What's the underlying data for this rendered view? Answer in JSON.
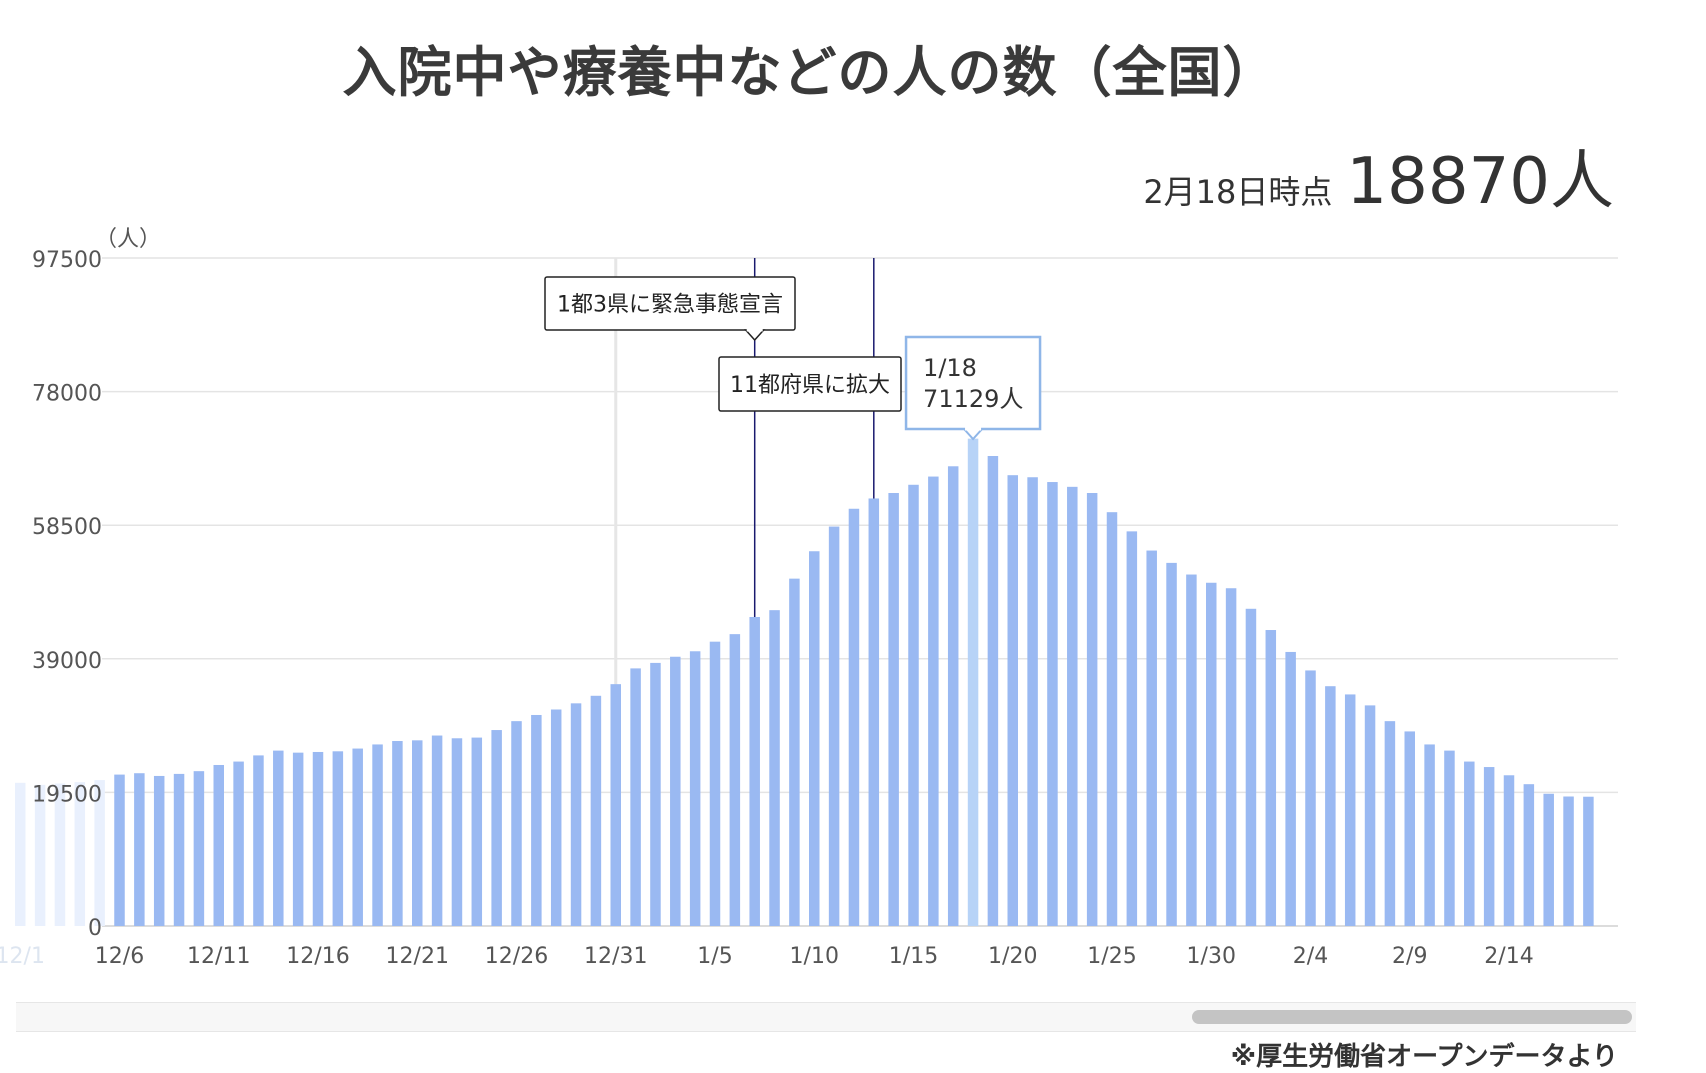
{
  "title": "入院中や療養中などの人の数（全国）",
  "latest": {
    "date_label": "2月18日時点",
    "value_label": "18870人"
  },
  "source": "※厚生労働省オープンデータより",
  "colors": {
    "bar": "#9ab9f2",
    "bar_faded": "#e9f0fd",
    "bar_highlight": "#b7d3f7",
    "grid": "#e4e4e4",
    "event_line": "#1a1a6e",
    "tooltip_border": "#8fb6e8"
  },
  "chart_data": {
    "type": "bar",
    "title": "入院中や療養中などの人の数（全国）",
    "ylabel": "（人）",
    "ylim": [
      0,
      97500
    ],
    "yticks": [
      0,
      19500,
      39000,
      58500,
      78000,
      97500
    ],
    "grid": true,
    "x_start": "12/1",
    "categories": [
      "12/1",
      "12/2",
      "12/3",
      "12/4",
      "12/5",
      "12/6",
      "12/7",
      "12/8",
      "12/9",
      "12/10",
      "12/11",
      "12/12",
      "12/13",
      "12/14",
      "12/15",
      "12/16",
      "12/17",
      "12/18",
      "12/19",
      "12/20",
      "12/21",
      "12/22",
      "12/23",
      "12/24",
      "12/25",
      "12/26",
      "12/27",
      "12/28",
      "12/29",
      "12/30",
      "12/31",
      "1/1",
      "1/2",
      "1/3",
      "1/4",
      "1/5",
      "1/6",
      "1/7",
      "1/8",
      "1/9",
      "1/10",
      "1/11",
      "1/12",
      "1/13",
      "1/14",
      "1/15",
      "1/16",
      "1/17",
      "1/18",
      "1/19",
      "1/20",
      "1/21",
      "1/22",
      "1/23",
      "1/24",
      "1/25",
      "1/26",
      "1/27",
      "1/28",
      "1/29",
      "1/30",
      "1/31",
      "2/1",
      "2/2",
      "2/3",
      "2/4",
      "2/5",
      "2/6",
      "2/7",
      "2/8",
      "2/9",
      "2/10",
      "2/11",
      "2/12",
      "2/13",
      "2/14",
      "2/15",
      "2/16",
      "2/17",
      "2/18"
    ],
    "xtick_labels": [
      "12/1",
      "12/6",
      "12/11",
      "12/16",
      "12/21",
      "12/26",
      "12/31",
      "1/5",
      "1/10",
      "1/15",
      "1/20",
      "1/25",
      "1/30",
      "2/4",
      "2/9",
      "2/14"
    ],
    "xtick_faded": [
      "12/1"
    ],
    "values": [
      20900,
      20600,
      20800,
      21000,
      21300,
      22100,
      22300,
      21900,
      22200,
      22600,
      23500,
      24000,
      24900,
      25600,
      25300,
      25400,
      25500,
      25900,
      26500,
      27000,
      27100,
      27800,
      27400,
      27500,
      28600,
      29900,
      30800,
      31600,
      32500,
      33600,
      35300,
      37600,
      38400,
      39300,
      40100,
      41500,
      42600,
      45100,
      46100,
      50700,
      54700,
      58300,
      60900,
      62400,
      63200,
      64400,
      65600,
      67100,
      71129,
      68600,
      65800,
      65500,
      64800,
      64100,
      63200,
      60400,
      57600,
      54800,
      53000,
      51300,
      50100,
      49300,
      46300,
      43200,
      40000,
      37300,
      35000,
      33800,
      32200,
      29900,
      28400,
      26500,
      25600,
      24000,
      23200,
      22000,
      20700,
      19300,
      18900,
      18870
    ],
    "faded_count": 5,
    "highlight_index": 48,
    "tooltip": {
      "date": "1/18",
      "value": "71129人"
    },
    "annotations": [
      {
        "x": "1/7",
        "label": "1都3県に緊急事態宣言"
      },
      {
        "x": "1/13",
        "label": "11都府県に拡大"
      }
    ],
    "reference_line_x": "12/31"
  }
}
